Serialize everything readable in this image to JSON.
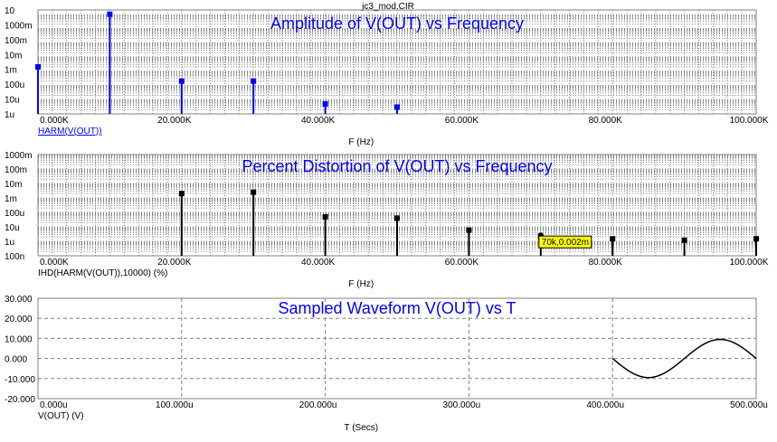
{
  "window_title": "jc3_mod.CIR",
  "colors": {
    "plot1": "#0000ff",
    "plot2": "#000000",
    "plot3": "#000000",
    "grid": "#808080",
    "title": "#0000ff",
    "tooltip_bg": "#ffff00"
  },
  "chart_data": [
    {
      "type": "bar",
      "title": "Amplitude of V(OUT) vs Frequency",
      "xlabel": "F (Hz)",
      "ylabel": "HARM(V(OUT))",
      "xscale": "linear",
      "yscale": "log",
      "xlim": [
        0,
        100000
      ],
      "ylim": [
        1e-06,
        20
      ],
      "x_ticks": [
        "0.000K",
        "20.000K",
        "40.000K",
        "60.000K",
        "80.000K",
        "100.000K"
      ],
      "y_ticks": [
        "10",
        "1000m",
        "100m",
        "10m",
        "1m",
        "100u",
        "10u",
        "1u"
      ],
      "marker": "square",
      "grid": "dotted",
      "points": [
        {
          "x": 0,
          "y": 0.002
        },
        {
          "x": 10000,
          "y": 10
        },
        {
          "x": 20000,
          "y": 0.0002
        },
        {
          "x": 30000,
          "y": 0.0002
        },
        {
          "x": 40000,
          "y": 5e-06
        },
        {
          "x": 50000,
          "y": 3e-06
        }
      ]
    },
    {
      "type": "bar",
      "title": "Percent Distortion of V(OUT) vs Frequency",
      "xlabel": "F (Hz)",
      "ylabel": "IHD(HARM(V(OUT)),10000) (%)",
      "xscale": "linear",
      "yscale": "log",
      "xlim": [
        0,
        100000
      ],
      "ylim": [
        1e-07,
        1
      ],
      "x_ticks": [
        "0.000K",
        "20.000K",
        "40.000K",
        "60.000K",
        "80.000K",
        "100.000K"
      ],
      "y_ticks": [
        "1000m",
        "100m",
        "10m",
        "1m",
        "100u",
        "10u",
        "1u",
        "100n"
      ],
      "marker": "square",
      "grid": "dotted",
      "points": [
        {
          "x": 20000,
          "y": 0.002
        },
        {
          "x": 30000,
          "y": 0.0025
        },
        {
          "x": 40000,
          "y": 5e-05
        },
        {
          "x": 50000,
          "y": 4e-05
        },
        {
          "x": 60000,
          "y": 6e-06
        },
        {
          "x": 70000,
          "y": 2e-06
        },
        {
          "x": 80000,
          "y": 1.5e-06
        },
        {
          "x": 90000,
          "y": 1.2e-06
        },
        {
          "x": 100000,
          "y": 1.5e-06
        }
      ],
      "annotation": {
        "x": 70000,
        "y": 2e-06,
        "text": "70k,0.002m"
      }
    },
    {
      "type": "line",
      "title": "Sampled Waveform  V(OUT) vs T",
      "xlabel": "T (Secs)",
      "ylabel": "V(OUT) (V)",
      "xscale": "linear",
      "yscale": "linear",
      "xlim": [
        0,
        0.0005
      ],
      "ylim": [
        -20,
        30
      ],
      "x_ticks": [
        "0.000u",
        "100.000u",
        "200.000u",
        "300.000u",
        "400.000u",
        "500.000u"
      ],
      "y_ticks": [
        "30.000",
        "20.000",
        "10.000",
        "0.000",
        "-10.000",
        "-20.000"
      ],
      "grid": "dashed",
      "series": [
        {
          "x": [
            0.0004,
            0.00041,
            0.00042,
            0.00043,
            0.00044,
            0.00045,
            0.00046,
            0.00047,
            0.00048,
            0.00049,
            0.0005
          ],
          "values": [
            0,
            -5.9,
            -9.5,
            -9.5,
            -5.9,
            0,
            5.9,
            9.5,
            9.5,
            5.9,
            0
          ]
        }
      ]
    }
  ]
}
